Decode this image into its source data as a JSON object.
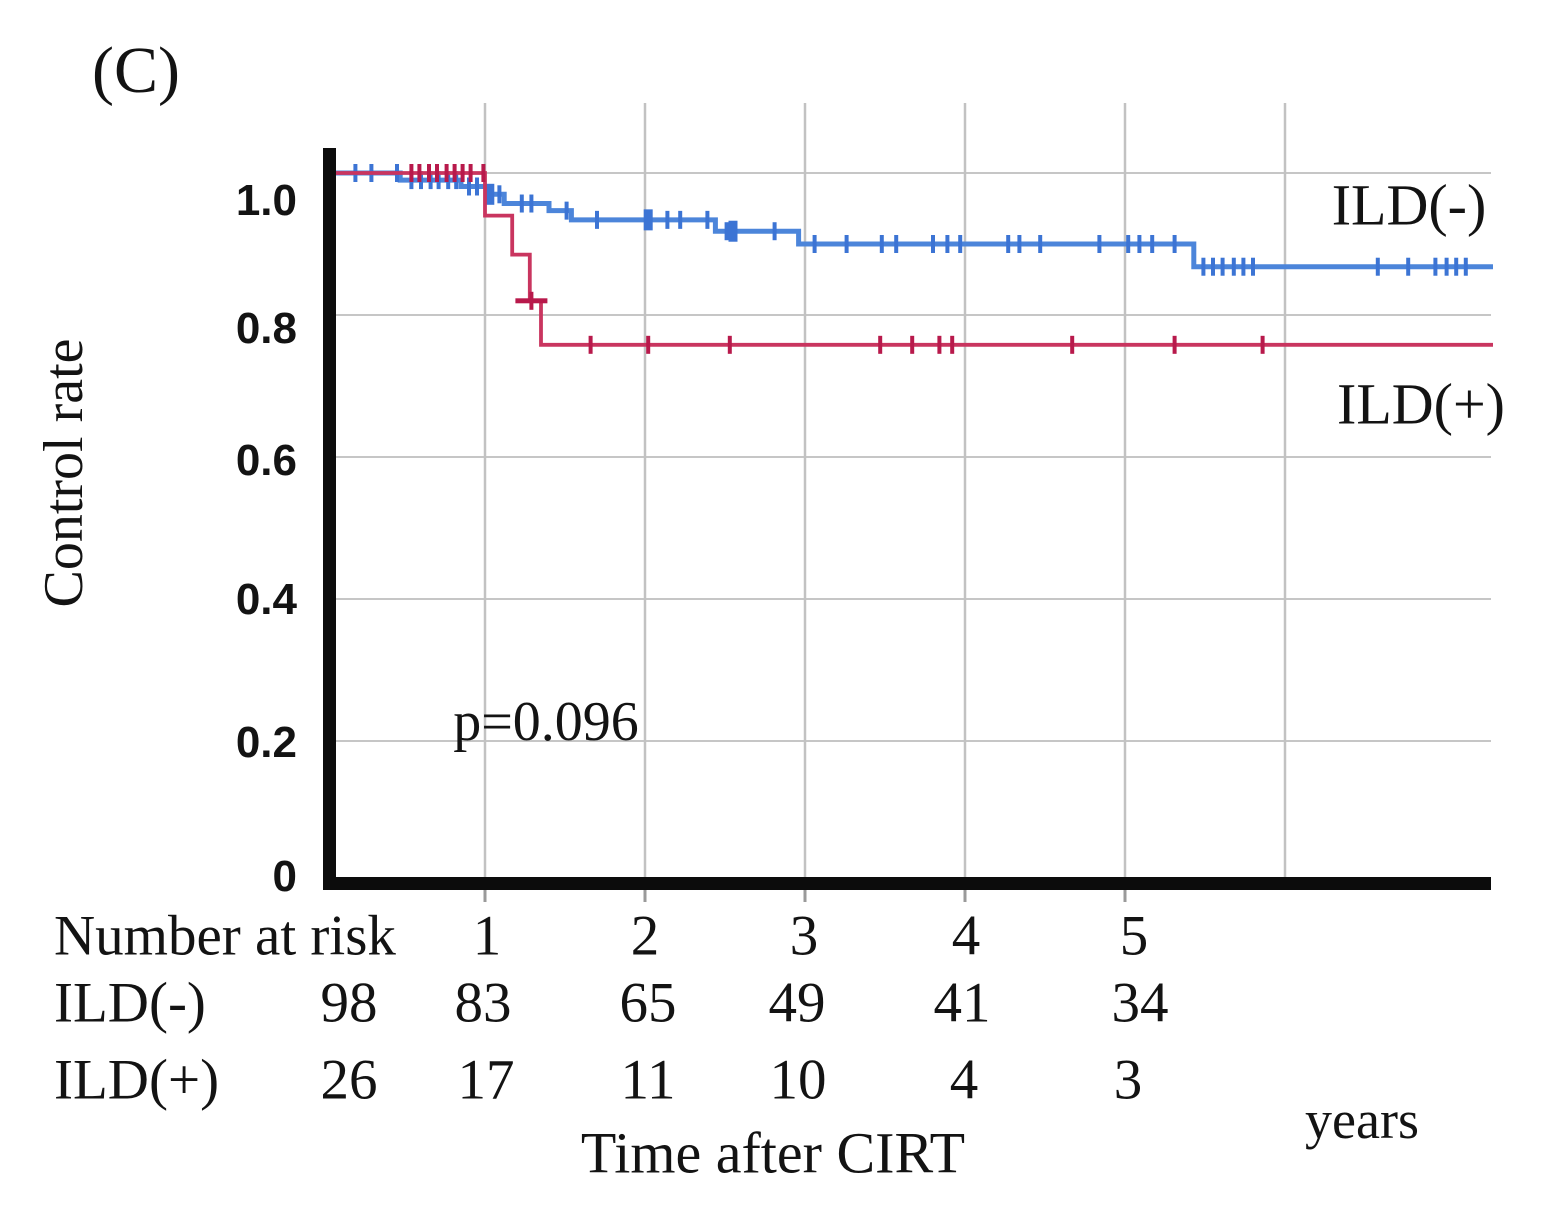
{
  "panel_label": "(C)",
  "chart_data": {
    "type": "line",
    "subtype": "kaplan-meier-step-curves",
    "title": "",
    "ylabel": "Control rate",
    "xlabel": "Time after CIRT",
    "x_unit": "years",
    "xlim": [
      0,
      7.3
    ],
    "ylim": [
      0,
      1.05
    ],
    "grid": true,
    "annotation_p_value": "p=0.096",
    "y_ticks": [
      {
        "label": "1.0",
        "value": 1.0
      },
      {
        "label": "0.8",
        "value": 0.8
      },
      {
        "label": "0.6",
        "value": 0.6
      },
      {
        "label": "0.4",
        "value": 0.4
      },
      {
        "label": "0.2",
        "value": 0.2
      },
      {
        "label": "0",
        "value": 0
      }
    ],
    "x_ticks": [
      {
        "label": "1",
        "value": 1
      },
      {
        "label": "2",
        "value": 2
      },
      {
        "label": "3",
        "value": 3
      },
      {
        "label": "4",
        "value": 4
      },
      {
        "label": "5",
        "value": 5
      }
    ],
    "series": [
      {
        "name": "ILD(-)",
        "color": "#4c85da",
        "censor_color": "#3c74d4",
        "steps": [
          [
            0,
            1.0
          ],
          [
            0.47,
            0.99
          ],
          [
            0.85,
            0.981
          ],
          [
            1.01,
            0.97
          ],
          [
            1.12,
            0.957
          ],
          [
            1.4,
            0.947
          ],
          [
            1.54,
            0.934
          ],
          [
            2.44,
            0.918
          ],
          [
            2.96,
            0.9
          ],
          [
            5.43,
            0.868
          ]
        ],
        "end_x": 7.3,
        "censors": [
          [
            0.19,
            1.0
          ],
          [
            0.29,
            1.0
          ],
          [
            0.45,
            1.0
          ],
          [
            0.54,
            0.99
          ],
          [
            0.6,
            0.99
          ],
          [
            0.66,
            0.99
          ],
          [
            0.71,
            0.99
          ],
          [
            0.77,
            0.99
          ],
          [
            0.82,
            0.99
          ],
          [
            0.9,
            0.981
          ],
          [
            0.95,
            0.981
          ],
          [
            1.03,
            0.97,
            1
          ],
          [
            1.09,
            0.97
          ],
          [
            1.23,
            0.957
          ],
          [
            1.29,
            0.957
          ],
          [
            1.51,
            0.947
          ],
          [
            1.7,
            0.934
          ],
          [
            2.02,
            0.934,
            1
          ],
          [
            2.14,
            0.934
          ],
          [
            2.22,
            0.934
          ],
          [
            2.39,
            0.934
          ],
          [
            2.51,
            0.918
          ],
          [
            2.55,
            0.918,
            1
          ],
          [
            2.81,
            0.918
          ],
          [
            3.06,
            0.9
          ],
          [
            3.26,
            0.9
          ],
          [
            3.48,
            0.9
          ],
          [
            3.57,
            0.9
          ],
          [
            3.8,
            0.9
          ],
          [
            3.89,
            0.9
          ],
          [
            3.97,
            0.9
          ],
          [
            4.27,
            0.9
          ],
          [
            4.34,
            0.9
          ],
          [
            4.47,
            0.9
          ],
          [
            4.84,
            0.9
          ],
          [
            5.02,
            0.9
          ],
          [
            5.09,
            0.9
          ],
          [
            5.17,
            0.9
          ],
          [
            5.31,
            0.9
          ],
          [
            5.49,
            0.868
          ],
          [
            5.55,
            0.868
          ],
          [
            5.61,
            0.868
          ],
          [
            5.68,
            0.868
          ],
          [
            5.74,
            0.868
          ],
          [
            5.8,
            0.868
          ],
          [
            6.58,
            0.868
          ],
          [
            6.77,
            0.868
          ],
          [
            6.94,
            0.868
          ],
          [
            7.01,
            0.868
          ],
          [
            7.07,
            0.868
          ],
          [
            7.13,
            0.868
          ]
        ]
      },
      {
        "name": "ILD(+)",
        "color": "#c9355f",
        "censor_color": "#b8194b",
        "steps": [
          [
            0,
            1.0
          ],
          [
            1.0,
            0.94
          ],
          [
            1.17,
            0.885
          ],
          [
            1.28,
            0.82
          ],
          [
            1.35,
            0.758
          ]
        ],
        "end_x": 7.3,
        "censors": [
          [
            0.54,
            1.0
          ],
          [
            0.59,
            1.0
          ],
          [
            0.65,
            1.0
          ],
          [
            0.7,
            1.0
          ],
          [
            0.76,
            1.0
          ],
          [
            0.81,
            1.0
          ],
          [
            0.86,
            1.0
          ],
          [
            0.91,
            1.0
          ],
          [
            0.99,
            1.0
          ],
          [
            1.29,
            0.82,
            2
          ],
          [
            1.66,
            0.758
          ],
          [
            2.02,
            0.758
          ],
          [
            2.53,
            0.758
          ],
          [
            3.47,
            0.758
          ],
          [
            3.67,
            0.758
          ],
          [
            3.84,
            0.758
          ],
          [
            3.92,
            0.758
          ],
          [
            4.67,
            0.758
          ],
          [
            5.31,
            0.758
          ],
          [
            5.86,
            0.758
          ]
        ]
      }
    ],
    "risk_table": {
      "header": "Number at risk",
      "time_labels": [
        "1",
        "2",
        "3",
        "4",
        "5"
      ],
      "rows": [
        {
          "label": "ILD(-)",
          "values": [
            "98",
            "83",
            "65",
            "49",
            "41",
            "34"
          ]
        },
        {
          "label": "ILD(+)",
          "values": [
            "26",
            "17",
            "11",
            "10",
            "4",
            "3"
          ]
        }
      ]
    },
    "legend_labels": [
      "ILD(-)",
      "ILD(+)"
    ],
    "colors": {
      "grid": "#c6c6c6",
      "axis": "#0c0c0c",
      "text": "#131313"
    }
  }
}
